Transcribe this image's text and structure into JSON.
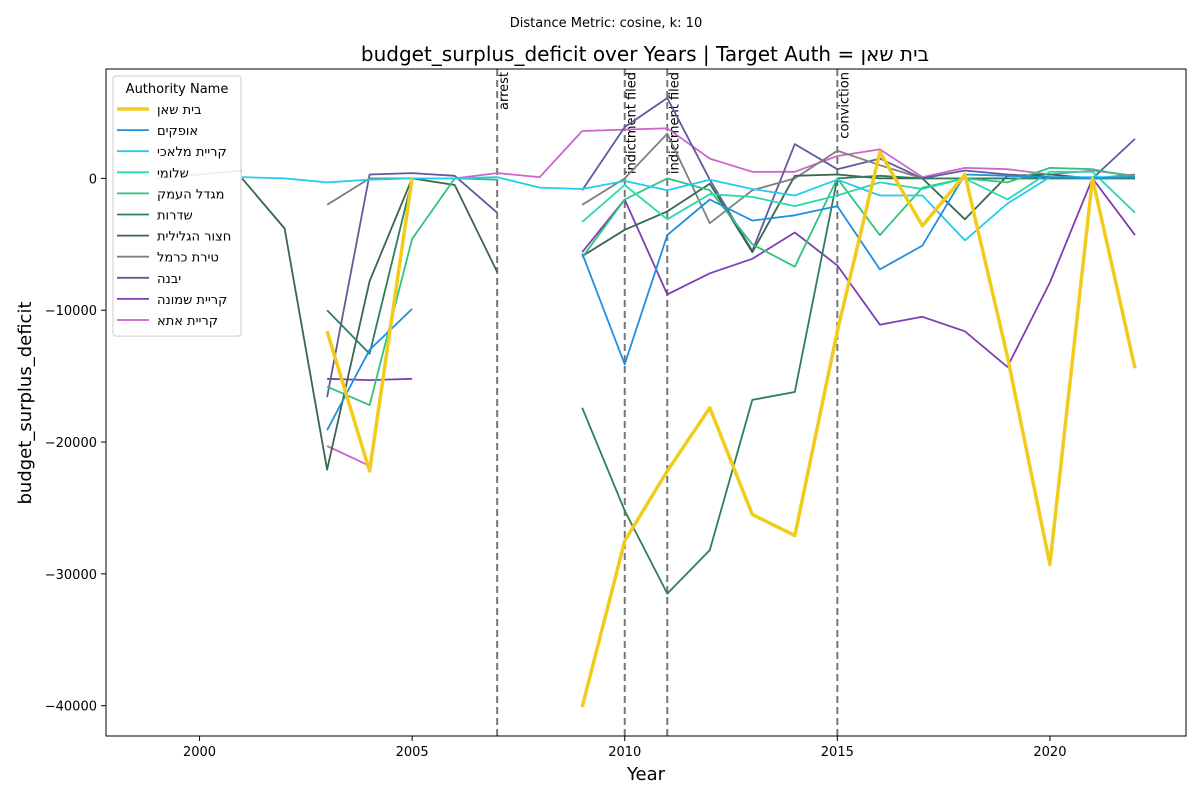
{
  "suptitle": "Distance Metric: cosine, k: 10",
  "chart_data": {
    "type": "line",
    "title": "budget_surplus_deficit over Years | Target Auth = בית שאן",
    "xlabel": "Year",
    "ylabel": "budget_surplus_deficit",
    "xlim": [
      1997.8,
      2023.2
    ],
    "ylim": [
      -42300,
      8300
    ],
    "x_ticks": [
      2000,
      2005,
      2010,
      2015,
      2020
    ],
    "y_ticks": [
      -40000,
      -30000,
      -20000,
      -10000,
      0
    ],
    "y_tick_labels": [
      "−40000",
      "−30000",
      "−20000",
      "−10000",
      "0"
    ],
    "grid": false,
    "legend": {
      "title": "Authority Name",
      "placement": "upper-left"
    },
    "events": [
      {
        "x": 2007,
        "label": "arrest"
      },
      {
        "x": 2010,
        "label": "indictment filed"
      },
      {
        "x": 2011,
        "label": "indictment filed"
      },
      {
        "x": 2015,
        "label": "conviction"
      }
    ],
    "series": [
      {
        "name": "בית שאן",
        "color": "#f2cc1d",
        "width": 3.5,
        "target": true,
        "points": [
          [
            2003,
            -11600
          ],
          [
            2004,
            -22200
          ],
          [
            2005,
            0
          ],
          [
            null,
            null
          ],
          [
            2009,
            -40100
          ],
          [
            2010,
            -27500
          ],
          [
            2011,
            -22200
          ],
          [
            2012,
            -17400
          ],
          [
            2013,
            -25500
          ],
          [
            2014,
            -27100
          ],
          [
            2015,
            -11600
          ],
          [
            2016,
            2000
          ],
          [
            2017,
            -3600
          ],
          [
            2018,
            300
          ],
          [
            2019,
            -13500
          ],
          [
            2020,
            -29300
          ],
          [
            2021,
            0
          ],
          [
            2022,
            -14400
          ]
        ]
      },
      {
        "name": "אופקים",
        "color": "#1f8fe0",
        "width": 1.8,
        "points": [
          [
            2003,
            -19100
          ],
          [
            2004,
            -13000
          ],
          [
            2005,
            -9900
          ],
          [
            null,
            null
          ],
          [
            2009,
            -5700
          ],
          [
            2010,
            -14100
          ],
          [
            2011,
            -4300
          ],
          [
            2012,
            -1600
          ],
          [
            2013,
            -3200
          ],
          [
            2014,
            -2800
          ],
          [
            2015,
            -2100
          ],
          [
            2016,
            -6900
          ],
          [
            2017,
            -5100
          ],
          [
            2018,
            300
          ],
          [
            2019,
            200
          ],
          [
            2020,
            100
          ],
          [
            2021,
            0
          ],
          [
            2022,
            100
          ]
        ]
      },
      {
        "name": "קריית מלאכי",
        "color": "#22ccee",
        "width": 1.8,
        "points": [
          [
            2001,
            100
          ],
          [
            2002,
            0
          ],
          [
            2003,
            -300
          ],
          [
            2004,
            -100
          ],
          [
            2005,
            0
          ],
          [
            2006,
            0
          ],
          [
            2007,
            100
          ],
          [
            2008,
            -700
          ],
          [
            2009,
            -800
          ],
          [
            2010,
            -200
          ],
          [
            2011,
            -900
          ],
          [
            2012,
            -100
          ],
          [
            2013,
            -800
          ],
          [
            2014,
            -1300
          ],
          [
            2015,
            -100
          ],
          [
            2016,
            -1300
          ],
          [
            2017,
            -1300
          ],
          [
            2018,
            -4700
          ],
          [
            2019,
            -1900
          ],
          [
            2020,
            100
          ],
          [
            2021,
            100
          ],
          [
            2022,
            100
          ]
        ]
      },
      {
        "name": "שלומי",
        "color": "#2ad8b0",
        "width": 1.8,
        "points": [
          [
            2009,
            -3300
          ],
          [
            2010,
            -500
          ],
          [
            2011,
            -3100
          ],
          [
            2012,
            -1200
          ],
          [
            2013,
            -1400
          ],
          [
            2014,
            -2100
          ],
          [
            2015,
            -1300
          ],
          [
            2016,
            -300
          ],
          [
            2017,
            -800
          ],
          [
            2018,
            0
          ],
          [
            2019,
            -1600
          ],
          [
            2020,
            500
          ],
          [
            2021,
            500
          ],
          [
            2022,
            -2600
          ]
        ]
      },
      {
        "name": "מגדל העמק",
        "color": "#2fc47e",
        "width": 1.8,
        "points": [
          [
            2003,
            -15800
          ],
          [
            2004,
            -17200
          ],
          [
            2005,
            -4600
          ],
          [
            2006,
            0
          ],
          [
            2007,
            -100
          ],
          [
            null,
            null
          ],
          [
            2009,
            -6000
          ],
          [
            2010,
            -1600
          ],
          [
            2011,
            0
          ],
          [
            2012,
            -900
          ],
          [
            2013,
            -5000
          ],
          [
            2014,
            -6700
          ],
          [
            2015,
            0
          ],
          [
            2016,
            -4300
          ],
          [
            2017,
            -700
          ],
          [
            2018,
            0
          ],
          [
            2019,
            -300
          ],
          [
            2020,
            800
          ],
          [
            2021,
            700
          ],
          [
            2022,
            100
          ]
        ]
      },
      {
        "name": "שדרות",
        "color": "#2e7d5b",
        "width": 1.8,
        "points": [
          [
            2003,
            -10000
          ],
          [
            2004,
            -13300
          ],
          [
            2005,
            -100
          ],
          [
            null,
            null
          ],
          [
            2009,
            -17400
          ],
          [
            2010,
            -25200
          ],
          [
            2011,
            -31500
          ],
          [
            2012,
            -28200
          ],
          [
            2013,
            -16800
          ],
          [
            2014,
            -16200
          ],
          [
            2015,
            0
          ],
          [
            2016,
            200
          ],
          [
            2017,
            0
          ],
          [
            2018,
            0
          ],
          [
            2019,
            0
          ],
          [
            2020,
            0
          ],
          [
            2021,
            0
          ],
          [
            2022,
            0
          ]
        ]
      },
      {
        "name": "חצור הגלילית",
        "color": "#3b6552",
        "width": 1.8,
        "points": [
          [
            2001,
            0
          ],
          [
            2002,
            -3800
          ],
          [
            2003,
            -22100
          ],
          [
            2004,
            -7800
          ],
          [
            2005,
            0
          ],
          [
            2006,
            -500
          ],
          [
            2007,
            -7100
          ],
          [
            null,
            null
          ],
          [
            2009,
            -5900
          ],
          [
            2010,
            -3900
          ],
          [
            2011,
            -2500
          ],
          [
            2012,
            -400
          ],
          [
            2013,
            -5600
          ],
          [
            2014,
            200
          ],
          [
            2015,
            300
          ],
          [
            2016,
            0
          ],
          [
            2017,
            0
          ],
          [
            2018,
            -3100
          ],
          [
            2019,
            200
          ],
          [
            2020,
            300
          ],
          [
            2021,
            0
          ],
          [
            2022,
            0
          ]
        ]
      },
      {
        "name": "טירת כרמל",
        "color": "#7f7f7f",
        "width": 1.8,
        "points": [
          [
            2003,
            -2000
          ],
          [
            2004,
            0
          ],
          [
            2005,
            0
          ],
          [
            null,
            null
          ],
          [
            2009,
            -2000
          ],
          [
            2010,
            0
          ],
          [
            2011,
            3400
          ],
          [
            2012,
            -3400
          ],
          [
            2013,
            -900
          ],
          [
            2014,
            0
          ],
          [
            2015,
            2100
          ],
          [
            2016,
            1000
          ],
          [
            2017,
            0
          ],
          [
            2018,
            0
          ],
          [
            2019,
            0
          ],
          [
            2020,
            0
          ],
          [
            2021,
            0
          ],
          [
            2022,
            300
          ]
        ]
      },
      {
        "name": "יבנה",
        "color": "#5e5c9a",
        "width": 1.8,
        "points": [
          [
            2003,
            -16600
          ],
          [
            2004,
            300
          ],
          [
            2005,
            400
          ],
          [
            2006,
            200
          ],
          [
            2007,
            -2600
          ],
          [
            null,
            null
          ],
          [
            2009,
            -900
          ],
          [
            2010,
            3900
          ],
          [
            2011,
            6100
          ],
          [
            2012,
            -100
          ],
          [
            2013,
            -5500
          ],
          [
            2014,
            2600
          ],
          [
            2015,
            700
          ],
          [
            2016,
            1500
          ],
          [
            2017,
            0
          ],
          [
            2018,
            600
          ],
          [
            2019,
            300
          ],
          [
            2020,
            100
          ],
          [
            2021,
            0
          ],
          [
            2022,
            3000
          ]
        ]
      },
      {
        "name": "קריית שמונה",
        "color": "#7e3fb4",
        "width": 1.8,
        "points": [
          [
            2003,
            -15200
          ],
          [
            2004,
            -15300
          ],
          [
            2005,
            -15200
          ],
          [
            null,
            null
          ],
          [
            2009,
            -5600
          ],
          [
            2010,
            -1600
          ],
          [
            2011,
            -8800
          ],
          [
            2012,
            -7200
          ],
          [
            2013,
            -6100
          ],
          [
            2014,
            -4100
          ],
          [
            2015,
            -6600
          ],
          [
            2016,
            -11100
          ],
          [
            2017,
            -10500
          ],
          [
            2018,
            -11600
          ],
          [
            2019,
            -14300
          ],
          [
            2020,
            -7900
          ],
          [
            2021,
            0
          ],
          [
            2022,
            -4300
          ]
        ]
      },
      {
        "name": "קריית אתא",
        "color": "#cc66cc",
        "width": 1.8,
        "points": [
          [
            1999,
            0
          ],
          [
            2000,
            300
          ],
          [
            2001,
            600
          ],
          [
            null,
            null
          ],
          [
            2003,
            -20300
          ],
          [
            2004,
            -21800
          ],
          [
            2005,
            0
          ],
          [
            2006,
            0
          ],
          [
            2007,
            400
          ],
          [
            2008,
            100
          ],
          [
            2009,
            3600
          ],
          [
            2010,
            3700
          ],
          [
            2011,
            3800
          ],
          [
            2012,
            1500
          ],
          [
            2013,
            500
          ],
          [
            2014,
            500
          ],
          [
            2015,
            1700
          ],
          [
            2016,
            2200
          ],
          [
            2017,
            100
          ],
          [
            2018,
            800
          ],
          [
            2019,
            700
          ],
          [
            2020,
            300
          ],
          [
            2021,
            600
          ],
          [
            2022,
            200
          ]
        ]
      }
    ]
  }
}
